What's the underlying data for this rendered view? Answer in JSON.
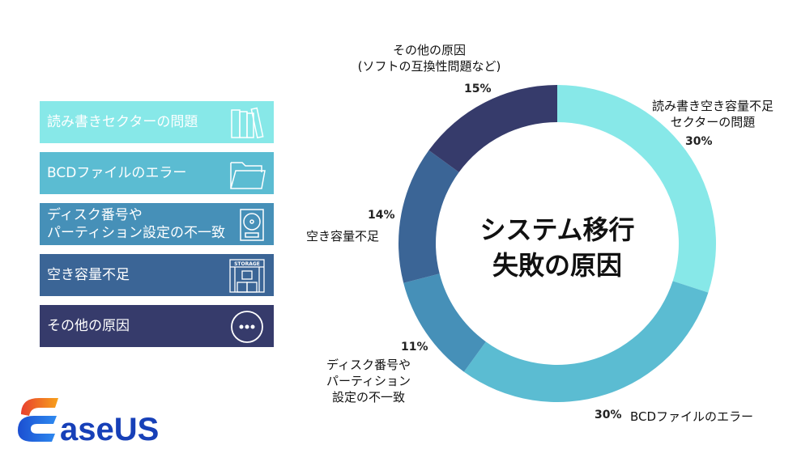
{
  "chart_data": {
    "type": "pie",
    "donut": true,
    "title": "システム移行\n失敗の原因",
    "title_lines": [
      "システム移行",
      "失敗の原因"
    ],
    "categories": [
      "読み書き空き容量不足 セクターの問題",
      "BCDファイルのエラー",
      "ディスク番号や パーティション 設定の不一致",
      "空き容量不足",
      "その他の原因 (ソフトの互換性問題など)"
    ],
    "values": [
      30,
      30,
      11,
      14,
      15
    ],
    "value_labels": [
      "30%",
      "30%",
      "11%",
      "14%",
      "15%"
    ],
    "colors": [
      "#87e8e8",
      "#5bbcd2",
      "#4690b8",
      "#3b6596",
      "#363b6b"
    ]
  },
  "slice_labels": [
    {
      "lines": [
        "読み書き空き容量不足",
        "セクターの問題"
      ],
      "pct": "30%"
    },
    {
      "lines": [
        "BCDファイルのエラー"
      ],
      "pct": "30%"
    },
    {
      "lines": [
        "ディスク番号や",
        "パーティション",
        "設定の不一致"
      ],
      "pct": "11%"
    },
    {
      "lines": [
        "空き容量不足"
      ],
      "pct": "14%"
    },
    {
      "lines": [
        "その他の原因",
        "(ソフトの互換性問題など)"
      ],
      "pct": "15%"
    }
  ],
  "legend": [
    {
      "label": "読み書きセクターの問題",
      "icon": "books-icon",
      "color": "#87e8e8"
    },
    {
      "label": "BCDファイルのエラー",
      "icon": "folder-icon",
      "color": "#5bbcd2"
    },
    {
      "label_lines": [
        "ディスク番号や",
        "パーティション設定の不一致"
      ],
      "icon": "hard-disk-icon",
      "color": "#4690b8"
    },
    {
      "label": "空き容量不足",
      "icon": "storage-icon",
      "icon_text": "STORAGE",
      "color": "#3b6596"
    },
    {
      "label": "その他の原因",
      "icon": "more-icon",
      "color": "#363b6b"
    }
  ],
  "logo": {
    "text": "EaseUS"
  }
}
